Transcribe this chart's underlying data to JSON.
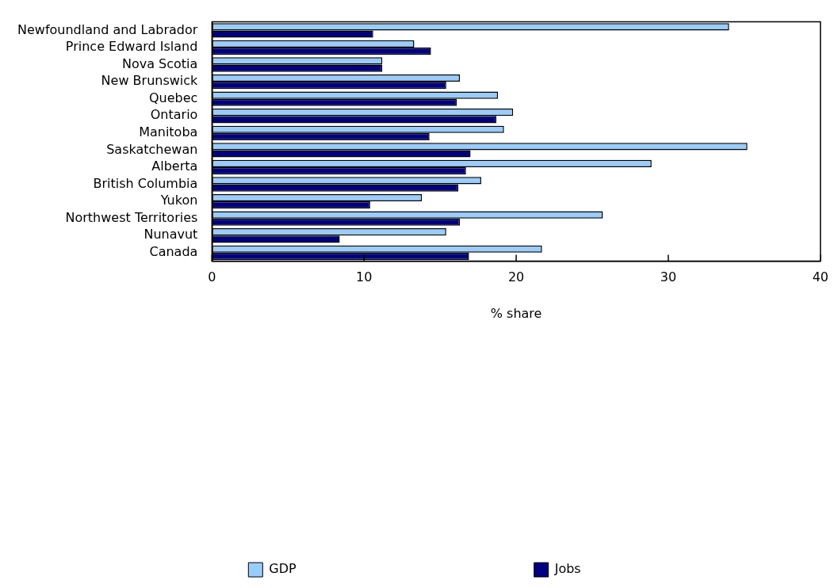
{
  "chart_data": {
    "type": "bar",
    "orientation": "horizontal",
    "categories": [
      "Newfoundland and Labrador",
      "Prince Edward Island",
      "Nova Scotia",
      "New Brunswick",
      "Quebec",
      "Ontario",
      "Manitoba",
      "Saskatchewan",
      "Alberta",
      "British Columbia",
      "Yukon",
      "Northwest Territories",
      "Nunavut",
      "Canada"
    ],
    "series": [
      {
        "name": "GDP",
        "color": "#99ccff",
        "values": [
          34.0,
          13.3,
          11.2,
          16.3,
          18.8,
          19.8,
          19.2,
          35.2,
          28.9,
          17.7,
          13.8,
          25.7,
          15.4,
          21.7
        ]
      },
      {
        "name": "Jobs",
        "color": "#000080",
        "values": [
          10.6,
          14.4,
          11.2,
          15.4,
          16.1,
          18.7,
          14.3,
          17.0,
          16.7,
          16.2,
          10.4,
          16.3,
          8.4,
          16.9
        ]
      }
    ],
    "xlabel": "% share",
    "xlim": [
      0,
      40
    ],
    "xticks": [
      0,
      10,
      20,
      30,
      40
    ],
    "grid": false,
    "legend": "bottom"
  }
}
